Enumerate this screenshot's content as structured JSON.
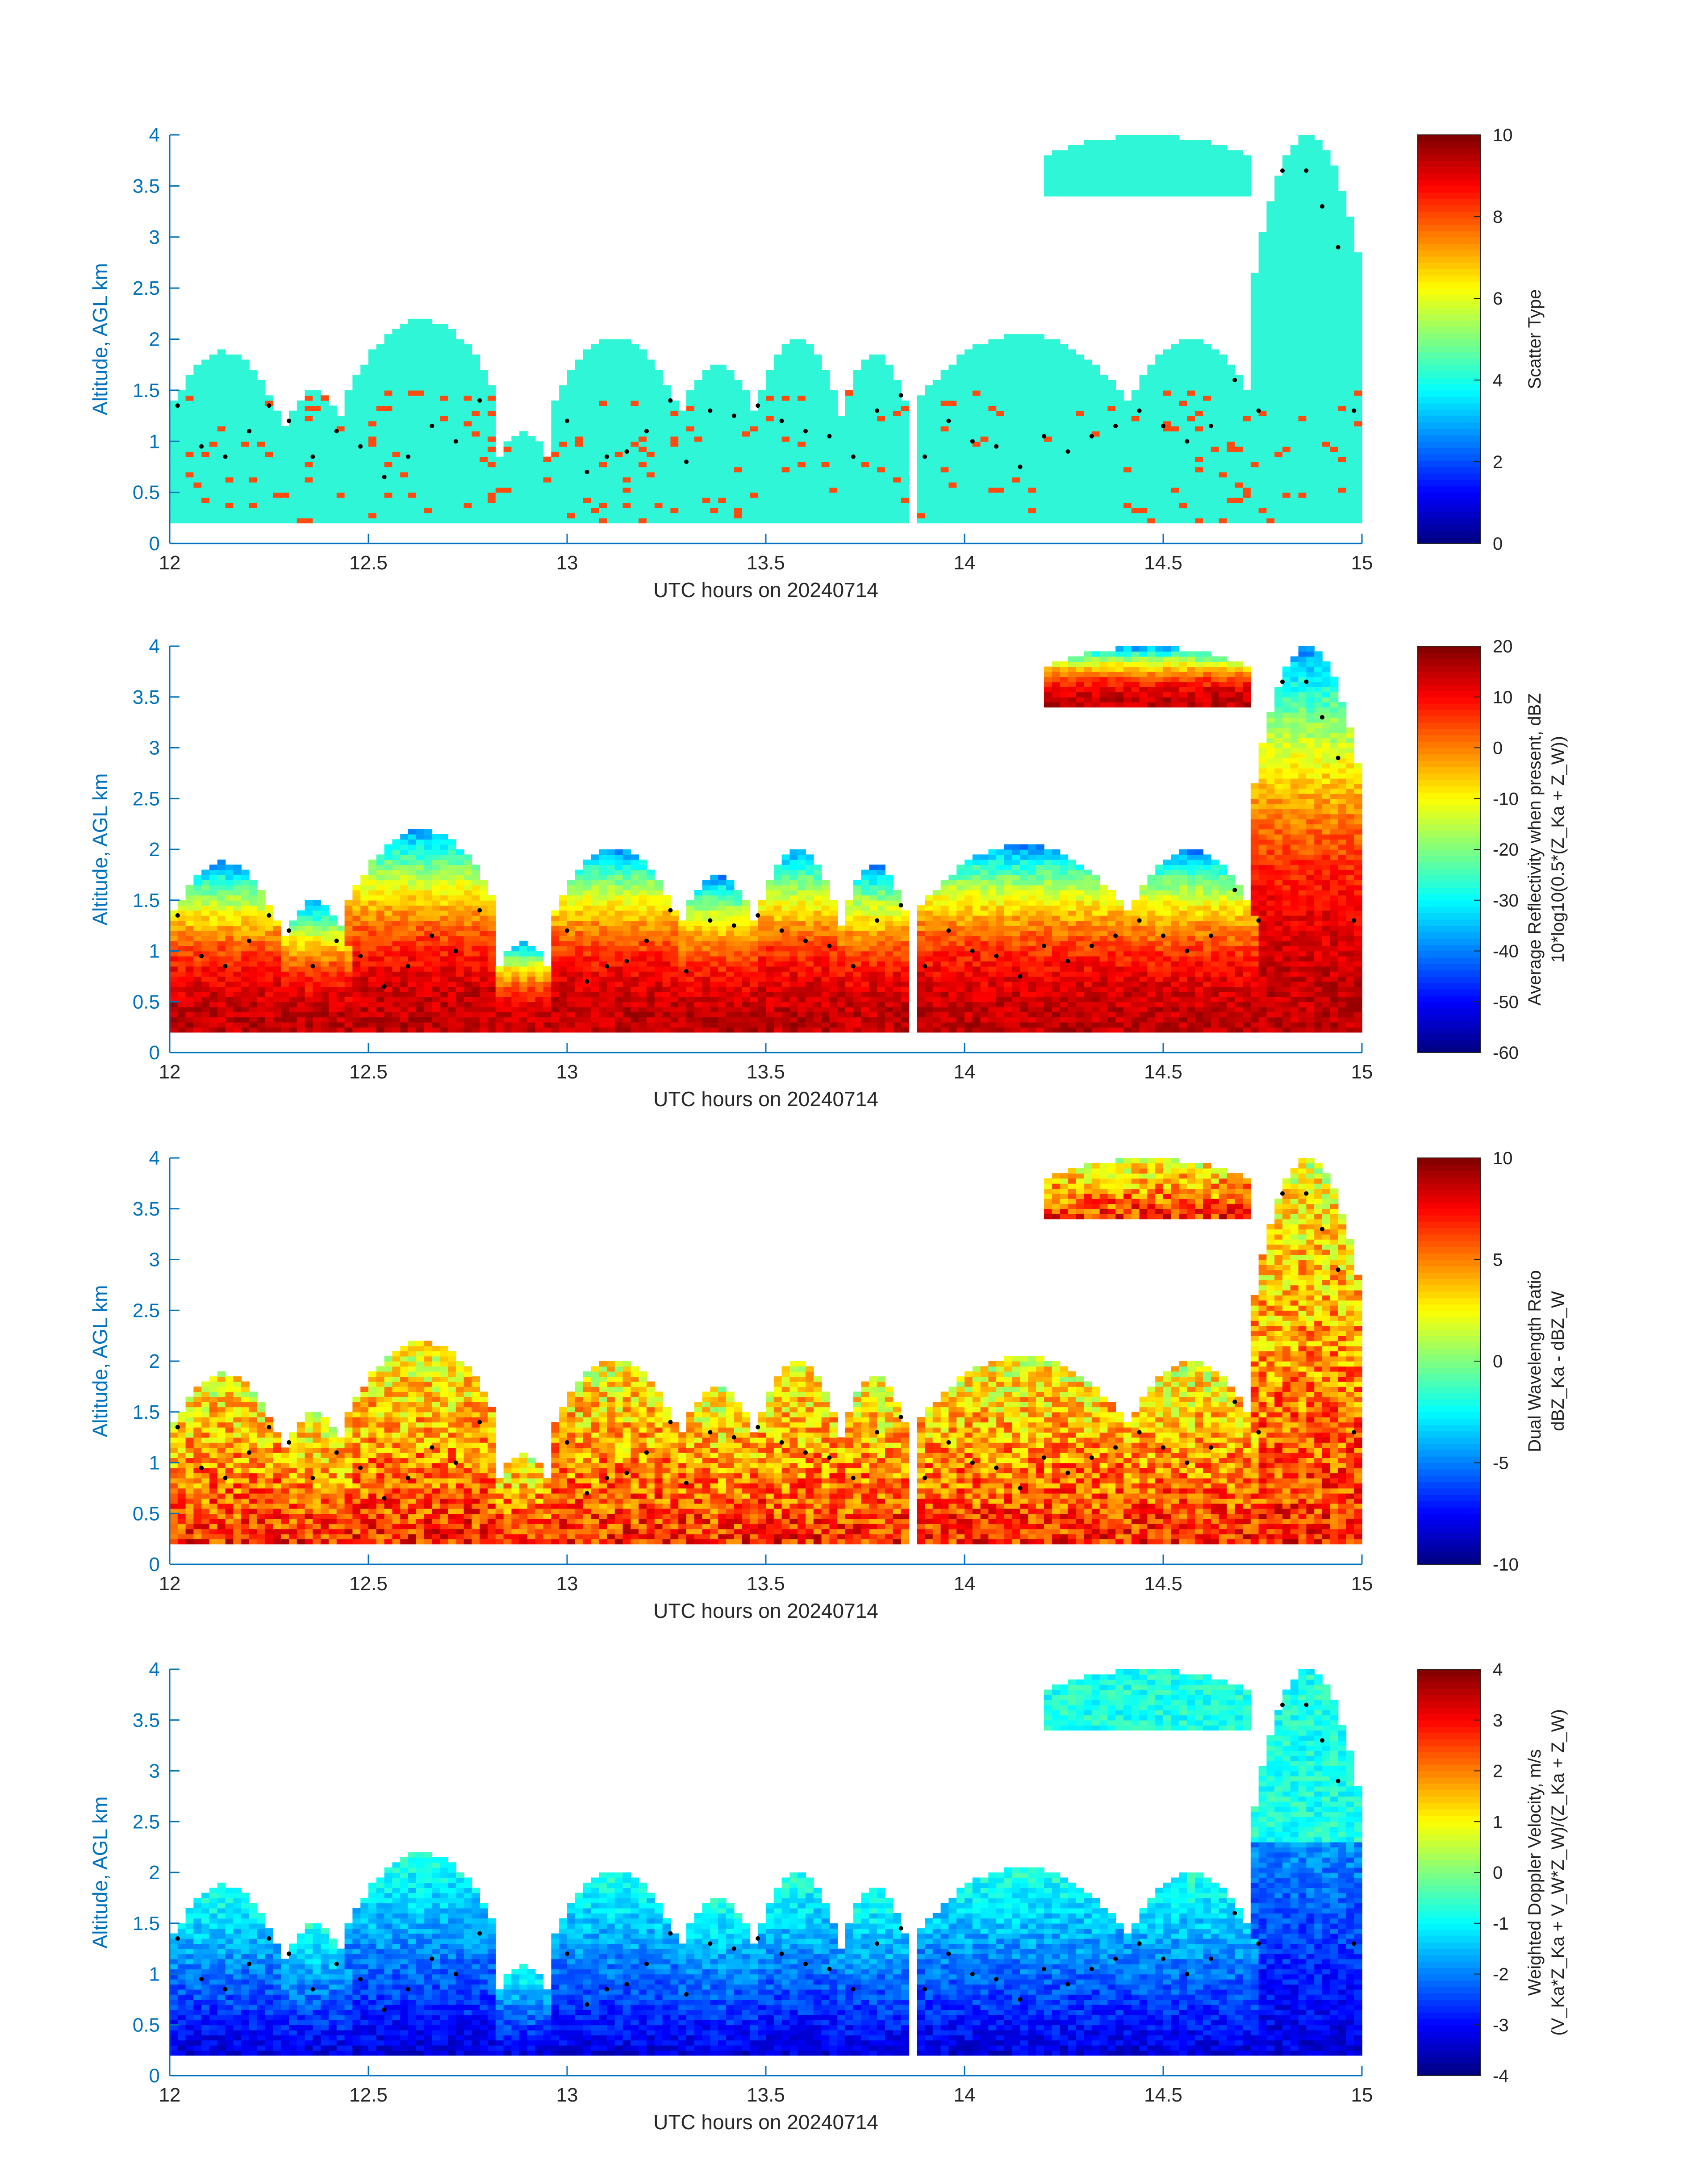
{
  "colors": {
    "axis": "#0072BD",
    "text": "#262626",
    "scatter_fill": "#2FF6D6",
    "scatter_alt": "#FF4A10"
  },
  "chart_data": [
    {
      "type": "heatmap",
      "title": "",
      "xlabel": "UTC hours on 20240714",
      "ylabel": "Altitude, AGL km",
      "xlim": [
        12,
        15
      ],
      "ylim": [
        0,
        4
      ],
      "xticks": [
        "12",
        "12.5",
        "13",
        "13.5",
        "14",
        "14.5",
        "15"
      ],
      "yticks": [
        "0",
        "0.5",
        "1",
        "1.5",
        "2",
        "2.5",
        "3",
        "3.5",
        "4"
      ],
      "colorbar": {
        "label_lines": [
          "Scatter Type"
        ],
        "range": [
          0,
          10
        ],
        "ticks": [
          "0",
          "2",
          "4",
          "6",
          "8",
          "10"
        ],
        "colormap": "jet"
      },
      "field": "scatter"
    },
    {
      "type": "heatmap",
      "title": "",
      "xlabel": "UTC hours on 20240714",
      "ylabel": "Altitude, AGL km",
      "xlim": [
        12,
        15
      ],
      "ylim": [
        0,
        4
      ],
      "xticks": [
        "12",
        "12.5",
        "13",
        "13.5",
        "14",
        "14.5",
        "15"
      ],
      "yticks": [
        "0",
        "0.5",
        "1",
        "1.5",
        "2",
        "2.5",
        "3",
        "3.5",
        "4"
      ],
      "colorbar": {
        "label_lines": [
          "Average Reflectivity when present, dBZ",
          "10*log10(0.5*(Z_Ka + Z_W))"
        ],
        "range": [
          -60,
          20
        ],
        "ticks": [
          "-60",
          "-50",
          "-40",
          "-30",
          "-20",
          "-10",
          "0",
          "10",
          "20"
        ],
        "colormap": "jet"
      },
      "field": "reflectivity"
    },
    {
      "type": "heatmap",
      "title": "",
      "xlabel": "UTC hours on 20240714",
      "ylabel": "Altitude, AGL km",
      "xlim": [
        12,
        15
      ],
      "ylim": [
        0,
        4
      ],
      "xticks": [
        "12",
        "12.5",
        "13",
        "13.5",
        "14",
        "14.5",
        "15"
      ],
      "yticks": [
        "0",
        "0.5",
        "1",
        "1.5",
        "2",
        "2.5",
        "3",
        "3.5",
        "4"
      ],
      "colorbar": {
        "label_lines": [
          "Dual Wavelength Ratio",
          "dBZ_Ka - dBZ_W"
        ],
        "range": [
          -10,
          10
        ],
        "ticks": [
          "-10",
          "-5",
          "0",
          "5",
          "10"
        ],
        "colormap": "jet"
      },
      "field": "dwr"
    },
    {
      "type": "heatmap",
      "title": "",
      "xlabel": "UTC hours on 20240714",
      "ylabel": "Altitude, AGL km",
      "xlim": [
        12,
        15
      ],
      "ylim": [
        0,
        4
      ],
      "xticks": [
        "12",
        "12.5",
        "13",
        "13.5",
        "14",
        "14.5",
        "15"
      ],
      "yticks": [
        "0",
        "0.5",
        "1",
        "1.5",
        "2",
        "2.5",
        "3",
        "3.5",
        "4"
      ],
      "colorbar": {
        "label_lines": [
          "Weighted Doppler Velocity, m/s",
          "(V_Ka*Z_Ka + V_W*Z_W)/(Z_Ka + Z_W)"
        ],
        "range": [
          -4,
          4
        ],
        "ticks": [
          "-4",
          "-3",
          "-2",
          "-1",
          "0",
          "1",
          "2",
          "3",
          "4"
        ],
        "colormap": "jet"
      },
      "field": "velocity"
    }
  ],
  "cloud_cells": [
    {
      "x0": 12.0,
      "x1": 12.27,
      "base": 0.2,
      "top": 1.88
    },
    {
      "x0": 12.28,
      "x1": 12.45,
      "base": 0.2,
      "top": 1.5
    },
    {
      "x0": 12.45,
      "x1": 12.82,
      "base": 0.2,
      "top": 2.2
    },
    {
      "x0": 12.82,
      "x1": 12.96,
      "base": 0.2,
      "top": 1.1
    },
    {
      "x0": 12.97,
      "x1": 13.27,
      "base": 0.2,
      "top": 2.02
    },
    {
      "x0": 13.28,
      "x1": 13.48,
      "base": 0.2,
      "top": 1.75
    },
    {
      "x0": 13.48,
      "x1": 13.68,
      "base": 0.2,
      "top": 2.0
    },
    {
      "x0": 13.69,
      "x1": 13.86,
      "base": 0.2,
      "top": 1.85
    },
    {
      "x0": 13.88,
      "x1": 14.41,
      "base": 0.2,
      "top": 2.05
    },
    {
      "x0": 14.41,
      "x1": 14.73,
      "base": 0.2,
      "top": 2.0
    },
    {
      "x0": 14.73,
      "x1": 15.0,
      "base": 0.2,
      "top": 4.0
    },
    {
      "x0": 14.2,
      "x1": 14.72,
      "base": 3.4,
      "top": 4.0
    }
  ],
  "dotted_line": [
    [
      12.02,
      1.35
    ],
    [
      12.08,
      0.95
    ],
    [
      12.14,
      0.85
    ],
    [
      12.2,
      1.1
    ],
    [
      12.25,
      1.35
    ],
    [
      12.3,
      1.2
    ],
    [
      12.36,
      0.85
    ],
    [
      12.42,
      1.1
    ],
    [
      12.48,
      0.95
    ],
    [
      12.54,
      0.65
    ],
    [
      12.6,
      0.85
    ],
    [
      12.66,
      1.15
    ],
    [
      12.72,
      1.0
    ],
    [
      12.78,
      1.4
    ],
    [
      13.0,
      1.2
    ],
    [
      13.05,
      0.7
    ],
    [
      13.1,
      0.85
    ],
    [
      13.15,
      0.9
    ],
    [
      13.2,
      1.1
    ],
    [
      13.26,
      1.4
    ],
    [
      13.3,
      0.8
    ],
    [
      13.36,
      1.3
    ],
    [
      13.42,
      1.25
    ],
    [
      13.48,
      1.35
    ],
    [
      13.54,
      1.2
    ],
    [
      13.6,
      1.1
    ],
    [
      13.66,
      1.05
    ],
    [
      13.72,
      0.85
    ],
    [
      13.78,
      1.3
    ],
    [
      13.84,
      1.45
    ],
    [
      13.9,
      0.85
    ],
    [
      13.96,
      1.2
    ],
    [
      14.02,
      1.0
    ],
    [
      14.08,
      0.95
    ],
    [
      14.14,
      0.75
    ],
    [
      14.2,
      1.05
    ],
    [
      14.26,
      0.9
    ],
    [
      14.32,
      1.05
    ],
    [
      14.38,
      1.15
    ],
    [
      14.44,
      1.3
    ],
    [
      14.5,
      1.15
    ],
    [
      14.56,
      1.0
    ],
    [
      14.62,
      1.15
    ],
    [
      14.68,
      1.6
    ],
    [
      14.74,
      1.3
    ],
    [
      14.8,
      3.65
    ],
    [
      14.86,
      3.65
    ],
    [
      14.9,
      3.3
    ],
    [
      14.94,
      2.9
    ],
    [
      14.98,
      1.3
    ]
  ]
}
